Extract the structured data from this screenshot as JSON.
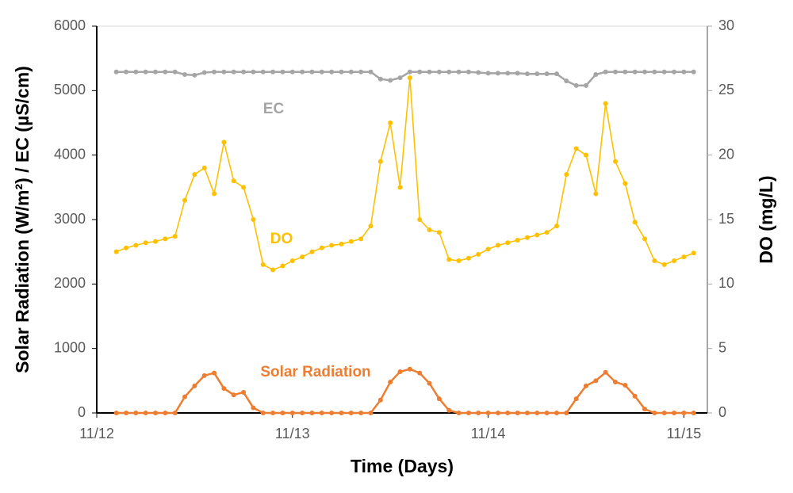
{
  "chart_data": {
    "type": "line",
    "x_label": "Time (Days)",
    "y_label": "Solar Radiation (W/m²) / EC (µS/cm)",
    "y2_label": "DO (mg/L)",
    "xlim": [
      0,
      3.12
    ],
    "xticks": [
      {
        "value": 0,
        "label": "11/12"
      },
      {
        "value": 1,
        "label": "11/13"
      },
      {
        "value": 2,
        "label": "11/14"
      },
      {
        "value": 3,
        "label": "11/15"
      }
    ],
    "ylim": [
      0,
      6000
    ],
    "yticks": [
      0,
      1000,
      2000,
      3000,
      4000,
      5000,
      6000
    ],
    "y2lim": [
      0,
      30
    ],
    "y2ticks": [
      0,
      5,
      10,
      15,
      20,
      25,
      30
    ],
    "grid": false,
    "x": [
      0.1,
      0.15,
      0.2,
      0.25,
      0.3,
      0.35,
      0.4,
      0.45,
      0.5,
      0.55,
      0.6,
      0.65,
      0.7,
      0.75,
      0.8,
      0.85,
      0.9,
      0.95,
      1.0,
      1.05,
      1.1,
      1.15,
      1.2,
      1.25,
      1.3,
      1.35,
      1.4,
      1.45,
      1.5,
      1.55,
      1.6,
      1.65,
      1.7,
      1.75,
      1.8,
      1.85,
      1.9,
      1.95,
      2.0,
      2.05,
      2.1,
      2.15,
      2.2,
      2.25,
      2.3,
      2.35,
      2.4,
      2.45,
      2.5,
      2.55,
      2.6,
      2.65,
      2.7,
      2.75,
      2.8,
      2.85,
      2.9,
      2.95,
      3.0,
      3.05
    ],
    "series": [
      {
        "name": "EC",
        "color": "#a5a5a5",
        "values": [
          5290,
          5290,
          5290,
          5290,
          5290,
          5290,
          5290,
          5250,
          5240,
          5280,
          5290,
          5290,
          5290,
          5290,
          5290,
          5290,
          5290,
          5290,
          5290,
          5290,
          5290,
          5290,
          5290,
          5290,
          5290,
          5290,
          5290,
          5180,
          5160,
          5200,
          5290,
          5290,
          5290,
          5290,
          5290,
          5290,
          5290,
          5280,
          5270,
          5270,
          5270,
          5270,
          5260,
          5260,
          5260,
          5260,
          5150,
          5080,
          5080,
          5250,
          5290,
          5290,
          5290,
          5290,
          5290,
          5290,
          5290,
          5290,
          5290,
          5290
        ]
      },
      {
        "name": "DO",
        "color": "#ffc000",
        "axis": "y2",
        "values": [
          12.5,
          12.8,
          13.0,
          13.2,
          13.3,
          13.5,
          13.7,
          16.5,
          18.5,
          19.0,
          17.0,
          21.0,
          18.0,
          17.5,
          15.0,
          11.5,
          11.1,
          11.4,
          11.8,
          12.1,
          12.5,
          12.8,
          13.0,
          13.1,
          13.3,
          13.5,
          14.5,
          19.5,
          22.5,
          17.5,
          26.0,
          15.0,
          14.2,
          14.0,
          11.9,
          11.8,
          12.0,
          12.3,
          12.7,
          13.0,
          13.2,
          13.4,
          13.6,
          13.8,
          14.0,
          14.5,
          18.5,
          20.5,
          20.0,
          17.0,
          24.0,
          19.5,
          17.8,
          14.8,
          13.5,
          11.8,
          11.5,
          11.8,
          12.1,
          12.4
        ]
      },
      {
        "name": "Solar Radiation",
        "color": "#ed7d31",
        "values": [
          0,
          0,
          0,
          0,
          0,
          0,
          0,
          250,
          420,
          580,
          620,
          380,
          280,
          320,
          80,
          0,
          0,
          0,
          0,
          0,
          0,
          0,
          0,
          0,
          0,
          0,
          0,
          200,
          480,
          640,
          680,
          620,
          460,
          220,
          40,
          0,
          0,
          0,
          0,
          0,
          0,
          0,
          0,
          0,
          0,
          0,
          0,
          220,
          420,
          500,
          630,
          480,
          430,
          260,
          60,
          0,
          0,
          0,
          0,
          0
        ]
      }
    ]
  }
}
